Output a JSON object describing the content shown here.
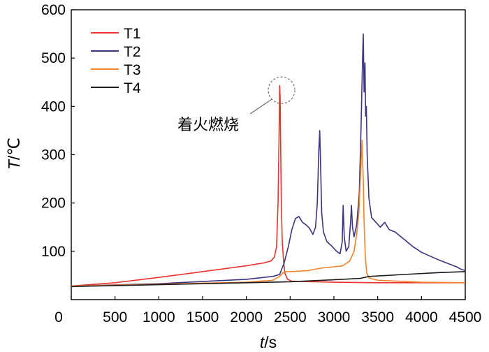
{
  "chart_data": {
    "type": "line",
    "xlabel_var": "t",
    "xlabel_unit": "/s",
    "ylabel_var": "T",
    "ylabel_unit": "/℃",
    "xlim": [
      0,
      4500
    ],
    "ylim": [
      0,
      600
    ],
    "xticks": [
      0,
      500,
      1000,
      1500,
      2000,
      2500,
      3000,
      3500,
      4000,
      4500
    ],
    "yticks": [
      100,
      200,
      300,
      400,
      500,
      600
    ],
    "grid": false,
    "legend_position": "top-left",
    "annotation": {
      "text": "着火燃烧",
      "x": 2370,
      "y": 445
    },
    "series": [
      {
        "name": "T1",
        "color": "#e8332e",
        "points": [
          [
            0,
            28
          ],
          [
            500,
            35
          ],
          [
            1000,
            46
          ],
          [
            1500,
            58
          ],
          [
            2000,
            70
          ],
          [
            2200,
            76
          ],
          [
            2280,
            80
          ],
          [
            2320,
            88
          ],
          [
            2345,
            110
          ],
          [
            2362,
            200
          ],
          [
            2373,
            330
          ],
          [
            2380,
            443
          ],
          [
            2386,
            420
          ],
          [
            2393,
            300
          ],
          [
            2400,
            190
          ],
          [
            2410,
            120
          ],
          [
            2425,
            80
          ],
          [
            2440,
            55
          ],
          [
            2470,
            42
          ],
          [
            2520,
            38
          ],
          [
            3000,
            36
          ],
          [
            3500,
            35
          ],
          [
            4000,
            35
          ],
          [
            4500,
            35
          ]
        ]
      },
      {
        "name": "T2",
        "color": "#3b3480",
        "points": [
          [
            0,
            28
          ],
          [
            1000,
            33
          ],
          [
            2000,
            42
          ],
          [
            2300,
            48
          ],
          [
            2380,
            52
          ],
          [
            2430,
            75
          ],
          [
            2480,
            110
          ],
          [
            2520,
            145
          ],
          [
            2560,
            168
          ],
          [
            2600,
            172
          ],
          [
            2640,
            160
          ],
          [
            2680,
            155
          ],
          [
            2720,
            148
          ],
          [
            2760,
            135
          ],
          [
            2790,
            150
          ],
          [
            2810,
            200
          ],
          [
            2828,
            310
          ],
          [
            2838,
            350
          ],
          [
            2848,
            280
          ],
          [
            2860,
            180
          ],
          [
            2880,
            140
          ],
          [
            2920,
            120
          ],
          [
            2980,
            110
          ],
          [
            3030,
            100
          ],
          [
            3070,
            95
          ],
          [
            3095,
            120
          ],
          [
            3105,
            195
          ],
          [
            3118,
            130
          ],
          [
            3140,
            100
          ],
          [
            3170,
            110
          ],
          [
            3190,
            160
          ],
          [
            3200,
            195
          ],
          [
            3212,
            150
          ],
          [
            3230,
            130
          ],
          [
            3260,
            155
          ],
          [
            3290,
            220
          ],
          [
            3310,
            360
          ],
          [
            3325,
            480
          ],
          [
            3335,
            550
          ],
          [
            3345,
            430
          ],
          [
            3355,
            490
          ],
          [
            3362,
            380
          ],
          [
            3370,
            400
          ],
          [
            3380,
            300
          ],
          [
            3400,
            210
          ],
          [
            3430,
            170
          ],
          [
            3480,
            160
          ],
          [
            3530,
            150
          ],
          [
            3580,
            160
          ],
          [
            3630,
            145
          ],
          [
            3700,
            140
          ],
          [
            3800,
            125
          ],
          [
            3900,
            110
          ],
          [
            4000,
            98
          ],
          [
            4100,
            90
          ],
          [
            4200,
            82
          ],
          [
            4300,
            75
          ],
          [
            4400,
            68
          ],
          [
            4450,
            63
          ],
          [
            4500,
            60
          ]
        ]
      },
      {
        "name": "T3",
        "color": "#f2822a",
        "points": [
          [
            0,
            28
          ],
          [
            1000,
            32
          ],
          [
            2000,
            36
          ],
          [
            2300,
            40
          ],
          [
            2380,
            48
          ],
          [
            2420,
            56
          ],
          [
            2460,
            58
          ],
          [
            2500,
            58
          ],
          [
            2700,
            60
          ],
          [
            2850,
            65
          ],
          [
            3000,
            68
          ],
          [
            3100,
            70
          ],
          [
            3180,
            80
          ],
          [
            3230,
            100
          ],
          [
            3260,
            135
          ],
          [
            3285,
            180
          ],
          [
            3305,
            260
          ],
          [
            3320,
            330
          ],
          [
            3335,
            250
          ],
          [
            3345,
            160
          ],
          [
            3358,
            90
          ],
          [
            3375,
            55
          ],
          [
            3400,
            45
          ],
          [
            3500,
            40
          ],
          [
            4000,
            36
          ],
          [
            4500,
            35
          ]
        ]
      },
      {
        "name": "T4",
        "color": "#1a1a1a",
        "points": [
          [
            0,
            27
          ],
          [
            500,
            29
          ],
          [
            1000,
            31
          ],
          [
            1500,
            33
          ],
          [
            2000,
            35
          ],
          [
            2500,
            37
          ],
          [
            3000,
            41
          ],
          [
            3300,
            44
          ],
          [
            3400,
            48
          ],
          [
            3800,
            52
          ],
          [
            4200,
            56
          ],
          [
            4500,
            58
          ]
        ]
      }
    ]
  }
}
